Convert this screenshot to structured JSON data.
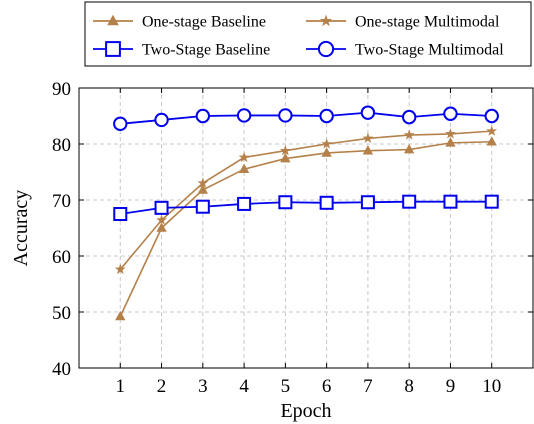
{
  "chart_data": {
    "type": "line",
    "xlabel": "Epoch",
    "ylabel": "Accuracy",
    "x": [
      1,
      2,
      3,
      4,
      5,
      6,
      7,
      8,
      9,
      10
    ],
    "xlim": [
      0,
      11
    ],
    "ylim": [
      40,
      90
    ],
    "yticks": [
      40,
      50,
      60,
      70,
      80,
      90
    ],
    "grid": true,
    "legend_position": "top",
    "series": [
      {
        "name": "One-stage Baseline",
        "color": "#b5814a",
        "marker": "triangle",
        "values": [
          49.2,
          65.0,
          71.8,
          75.5,
          77.4,
          78.4,
          78.8,
          79.0,
          80.2,
          80.4
        ]
      },
      {
        "name": "One-stage Multimodal",
        "color": "#b5814a",
        "marker": "star",
        "values": [
          57.6,
          66.4,
          73.0,
          77.6,
          78.8,
          80.0,
          81.0,
          81.6,
          81.8,
          82.3
        ]
      },
      {
        "name": "Two-Stage Baseline",
        "color": "#0000ee",
        "marker": "square",
        "values": [
          67.5,
          68.6,
          68.8,
          69.3,
          69.6,
          69.5,
          69.6,
          69.7,
          69.7,
          69.7
        ]
      },
      {
        "name": "Two-Stage Multimodal",
        "color": "#0000ee",
        "marker": "circle",
        "values": [
          83.6,
          84.3,
          85.0,
          85.1,
          85.1,
          85.0,
          85.6,
          84.8,
          85.4,
          85.0
        ]
      }
    ]
  }
}
